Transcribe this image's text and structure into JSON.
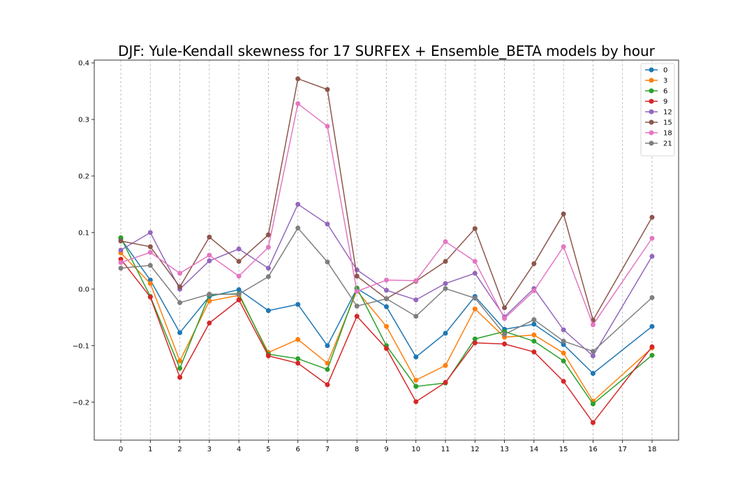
{
  "chart_data": {
    "type": "line",
    "title": "DJF: Yule-Kendall skewness for 17 SURFEX + Ensemble_BETA models by hour",
    "xlabel": "",
    "ylabel": "",
    "x": [
      0,
      1,
      2,
      3,
      4,
      5,
      6,
      7,
      8,
      9,
      10,
      11,
      12,
      13,
      14,
      15,
      16,
      17,
      18
    ],
    "x_ticks": [
      "0",
      "1",
      "2",
      "3",
      "4",
      "5",
      "6",
      "7",
      "8",
      "9",
      "10",
      "11",
      "12",
      "13",
      "14",
      "15",
      "16",
      "17",
      "18"
    ],
    "y_ticks": [
      -0.2,
      -0.1,
      0.0,
      0.1,
      0.2,
      0.3,
      0.4
    ],
    "y_tick_labels": [
      "−0.2",
      "−0.1",
      "0.0",
      "0.1",
      "0.2",
      "0.3",
      "0.4"
    ],
    "xlim": [
      -0.9,
      18.9
    ],
    "ylim": [
      -0.267,
      0.405
    ],
    "grid": "vertical dashed",
    "legend_position": "top-right",
    "series": [
      {
        "name": "0",
        "color": "#1f77b4",
        "values": [
          0.089,
          0.016,
          -0.077,
          -0.013,
          -0.001,
          -0.038,
          -0.027,
          -0.1,
          0.001,
          -0.031,
          -0.12,
          -0.078,
          -0.013,
          -0.071,
          -0.062,
          -0.098,
          -0.149,
          null,
          -0.066
        ]
      },
      {
        "name": "3",
        "color": "#ff7f0e",
        "values": [
          0.064,
          0.01,
          -0.127,
          -0.021,
          -0.011,
          -0.112,
          -0.089,
          -0.131,
          -0.003,
          -0.066,
          -0.161,
          -0.135,
          -0.035,
          -0.085,
          -0.081,
          -0.113,
          -0.198,
          null,
          -0.104
        ]
      },
      {
        "name": "6",
        "color": "#2ca02c",
        "values": [
          0.091,
          -0.013,
          -0.14,
          -0.01,
          -0.008,
          -0.115,
          -0.123,
          -0.142,
          0.002,
          -0.1,
          -0.172,
          -0.166,
          -0.088,
          -0.075,
          -0.092,
          -0.127,
          -0.203,
          null,
          -0.117
        ]
      },
      {
        "name": "9",
        "color": "#d62728",
        "values": [
          0.053,
          -0.014,
          -0.156,
          -0.06,
          -0.019,
          -0.118,
          -0.131,
          -0.169,
          -0.048,
          -0.105,
          -0.199,
          -0.165,
          -0.095,
          -0.097,
          -0.111,
          -0.163,
          -0.236,
          null,
          -0.102
        ]
      },
      {
        "name": "12",
        "color": "#9467bd",
        "values": [
          0.069,
          0.1,
          0.0,
          0.05,
          0.071,
          0.037,
          0.15,
          0.115,
          0.034,
          -0.002,
          -0.019,
          0.01,
          0.028,
          -0.049,
          0.001,
          -0.072,
          -0.118,
          null,
          0.058
        ]
      },
      {
        "name": "15",
        "color": "#8c564b",
        "values": [
          0.085,
          0.075,
          0.004,
          0.092,
          0.049,
          0.096,
          0.372,
          0.353,
          0.023,
          -0.017,
          0.014,
          0.049,
          0.107,
          -0.033,
          0.045,
          0.133,
          -0.055,
          null,
          0.127
        ]
      },
      {
        "name": "18",
        "color": "#e377c2",
        "values": [
          0.047,
          0.065,
          0.028,
          0.06,
          0.023,
          0.074,
          0.328,
          0.288,
          -0.004,
          0.016,
          0.015,
          0.084,
          0.049,
          -0.052,
          -0.003,
          0.075,
          -0.063,
          null,
          0.09
        ]
      },
      {
        "name": "21",
        "color": "#7f7f7f",
        "values": [
          0.037,
          0.042,
          -0.024,
          -0.009,
          -0.009,
          0.022,
          0.108,
          0.048,
          -0.03,
          -0.017,
          -0.048,
          0.001,
          -0.016,
          -0.08,
          -0.054,
          -0.092,
          -0.11,
          null,
          -0.015
        ]
      }
    ]
  }
}
